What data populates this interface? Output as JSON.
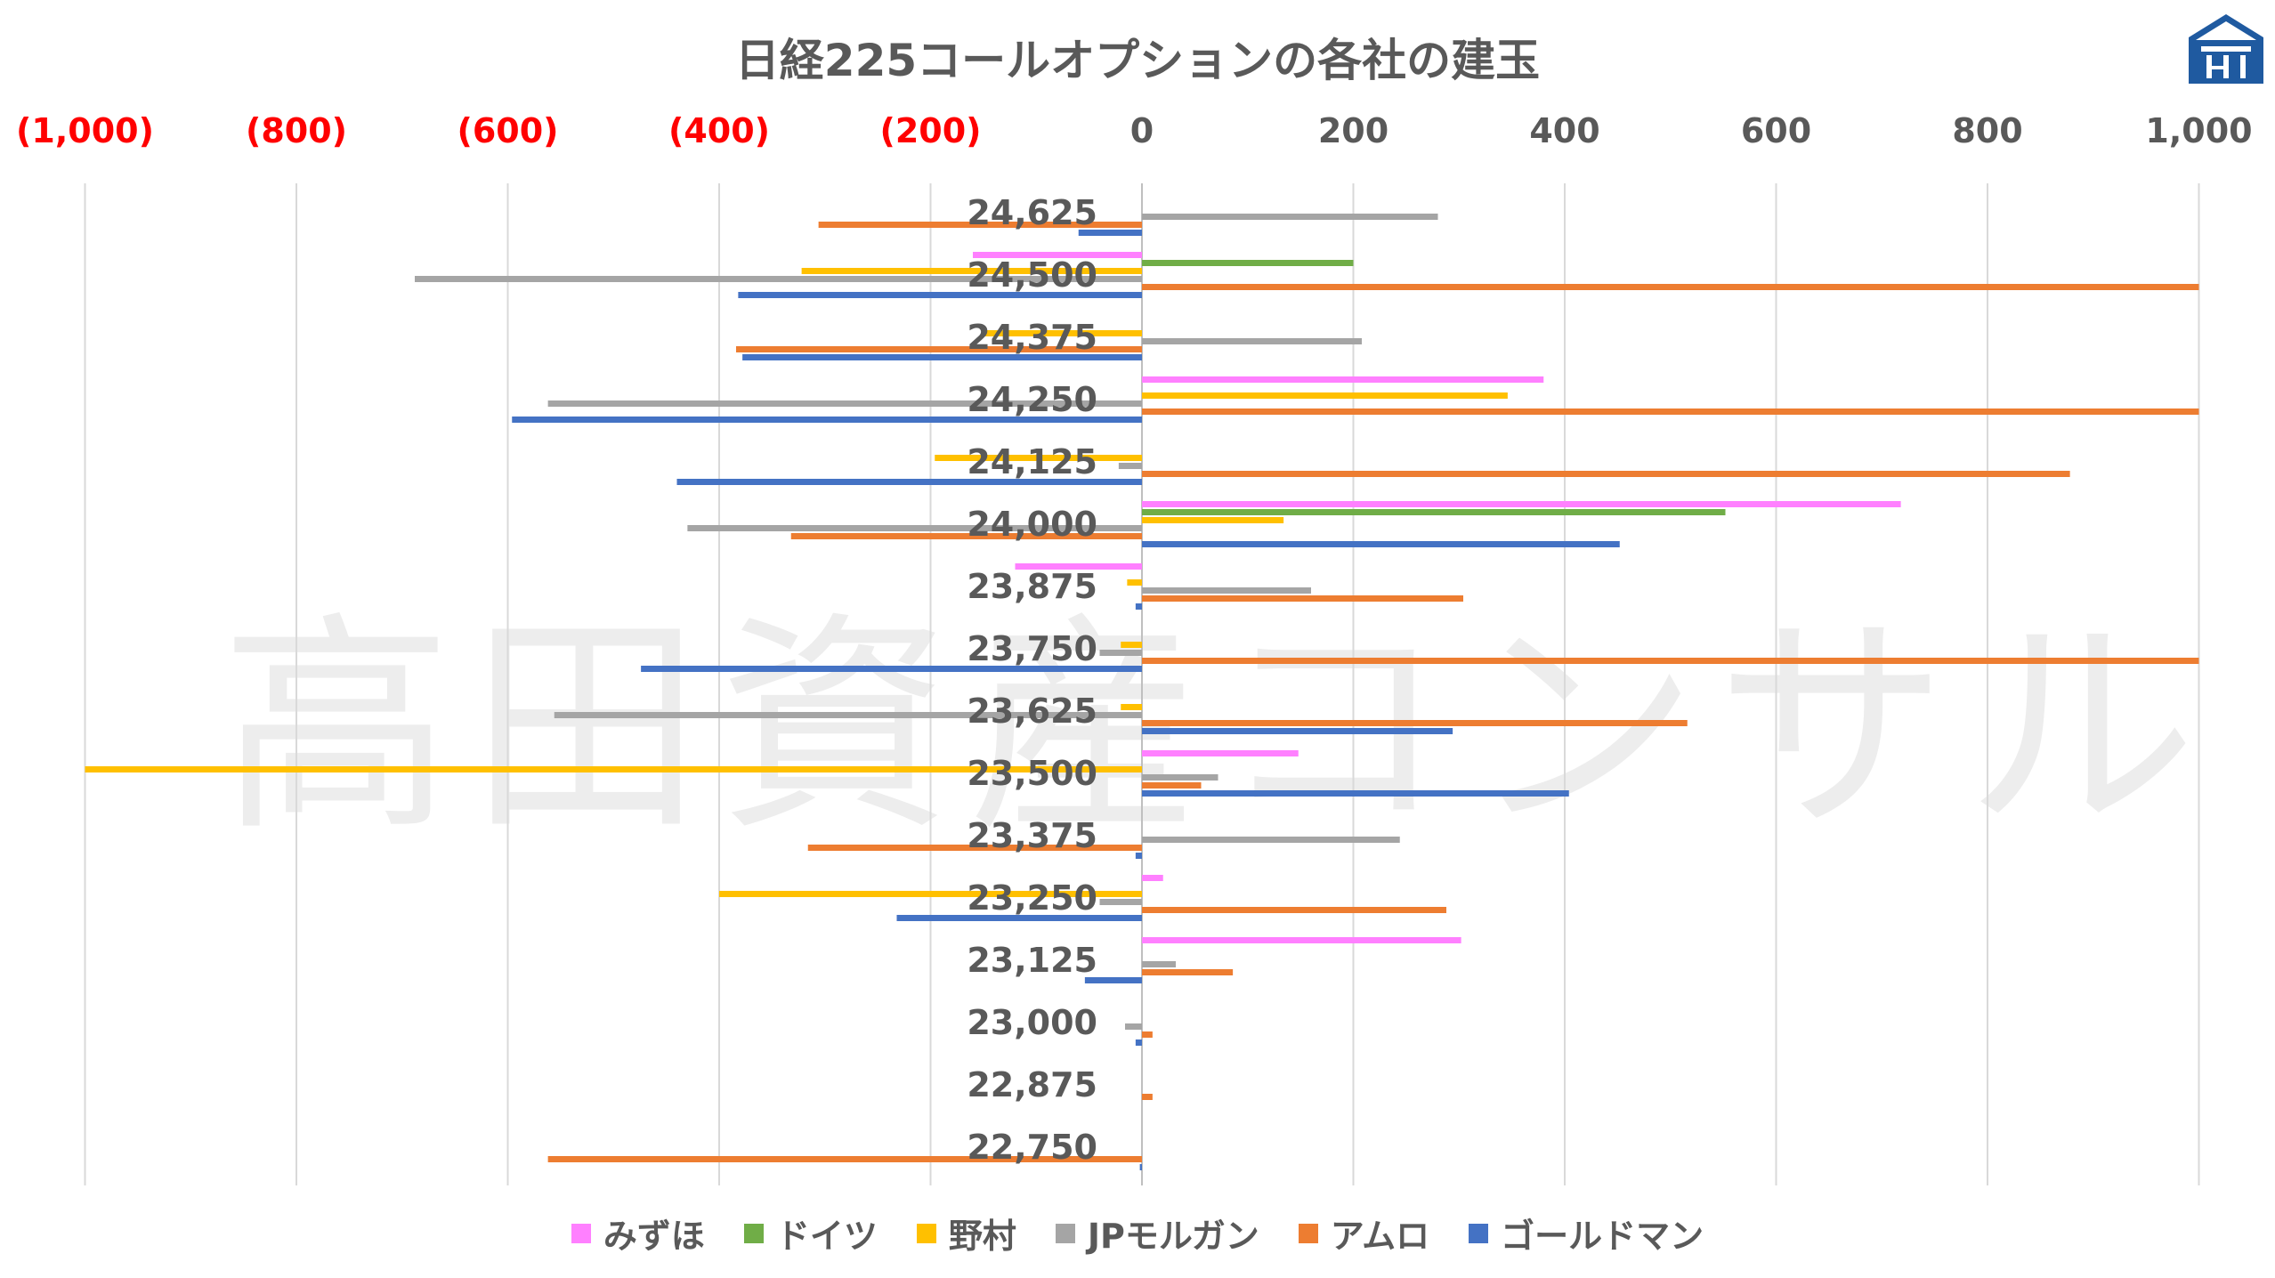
{
  "chart_data": {
    "type": "bar",
    "orientation": "horizontal",
    "title": "日経225コールオプションの各社の建玉",
    "categories": [
      "24,625",
      "24,500",
      "24,375",
      "24,250",
      "24,125",
      "24,000",
      "23,875",
      "23,750",
      "23,625",
      "23,500",
      "23,375",
      "23,250",
      "23,125",
      "23,000",
      "22,875",
      "22,750"
    ],
    "xlim": [
      -1000,
      1000
    ],
    "x_ticks": [
      -1000,
      -800,
      -600,
      -400,
      -200,
      0,
      200,
      400,
      600,
      800,
      1000
    ],
    "x_tick_labels": [
      "(1,000)",
      "(800)",
      "(600)",
      "(400)",
      "(200)",
      "0",
      "200",
      "400",
      "600",
      "800",
      "1,000"
    ],
    "negative_tick_color": "#ff0000",
    "positive_tick_color": "#595959",
    "grid": "vertical",
    "legend_position": "bottom",
    "series": [
      {
        "name": "みずほ",
        "color": "#ff80ff",
        "values": [
          0,
          -160,
          0,
          380,
          0,
          718,
          -120,
          0,
          0,
          148,
          0,
          20,
          302,
          0,
          0,
          0
        ]
      },
      {
        "name": "ドイツ",
        "color": "#70ad47",
        "values": [
          0,
          200,
          0,
          0,
          0,
          552,
          0,
          0,
          0,
          0,
          0,
          0,
          0,
          0,
          0,
          0
        ]
      },
      {
        "name": "野村",
        "color": "#ffc000",
        "values": [
          0,
          -322,
          -150,
          346,
          -196,
          134,
          -14,
          -20,
          -20,
          -1000,
          0,
          -400,
          0,
          0,
          0,
          0
        ]
      },
      {
        "name": "JPモルガン",
        "color": "#a5a5a5",
        "values": [
          280,
          -688,
          208,
          -562,
          -22,
          -430,
          160,
          -40,
          -556,
          72,
          244,
          -40,
          32,
          -16,
          0,
          0
        ]
      },
      {
        "name": "アムロ",
        "color": "#ed7d31",
        "values": [
          -306,
          1000,
          -384,
          1000,
          878,
          -332,
          304,
          1000,
          516,
          56,
          -316,
          288,
          86,
          10,
          10,
          -562
        ]
      },
      {
        "name": "ゴールドマン",
        "color": "#4472c4",
        "values": [
          -60,
          -382,
          -378,
          -596,
          -440,
          452,
          -6,
          -474,
          294,
          404,
          -6,
          -232,
          -54,
          -6,
          0,
          -2
        ]
      }
    ]
  },
  "watermark": "高田資産コンサル",
  "logo_icon": "house-logo-icon"
}
